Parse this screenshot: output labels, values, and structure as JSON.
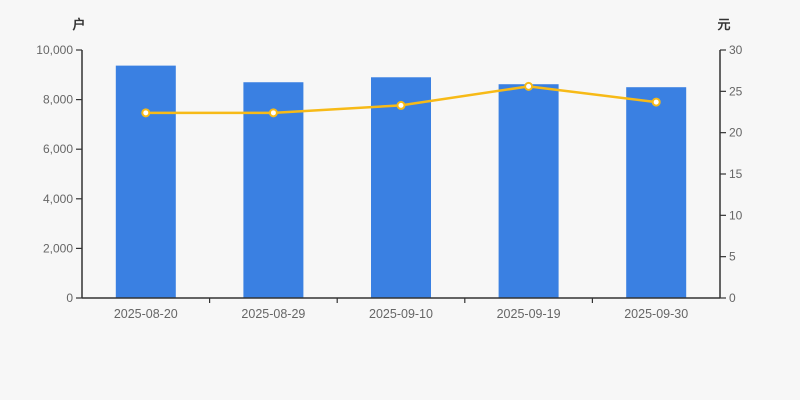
{
  "page": {
    "background_color": "#f7f7f7",
    "axis_line_color": "#333333",
    "tick_label_color": "#666666"
  },
  "chart_data": {
    "type": "bar",
    "title": "",
    "categories": [
      "2025-08-20",
      "2025-08-29",
      "2025-09-10",
      "2025-09-19",
      "2025-09-30"
    ],
    "series": [
      {
        "kind": "bar",
        "axis": "left",
        "unit": "户",
        "color": "#3a80e2",
        "values": [
          9370,
          8700,
          8900,
          8620,
          8500
        ]
      },
      {
        "kind": "line",
        "axis": "right",
        "unit": "元",
        "color": "#f7ba17",
        "marker_fill": "#ffffff",
        "values": [
          22.4,
          22.4,
          23.3,
          25.6,
          23.7
        ]
      }
    ],
    "left_axis": {
      "unit": "户",
      "min": 0,
      "max": 10000,
      "step": 2000,
      "tick_labels": [
        "0",
        "2,000",
        "4,000",
        "6,000",
        "8,000",
        "10,000"
      ]
    },
    "right_axis": {
      "unit": "元",
      "min": 0,
      "max": 30,
      "step": 5,
      "tick_labels": [
        "0",
        "5",
        "10",
        "15",
        "20",
        "25",
        "30"
      ]
    },
    "grid": false,
    "legend_position": "none"
  }
}
